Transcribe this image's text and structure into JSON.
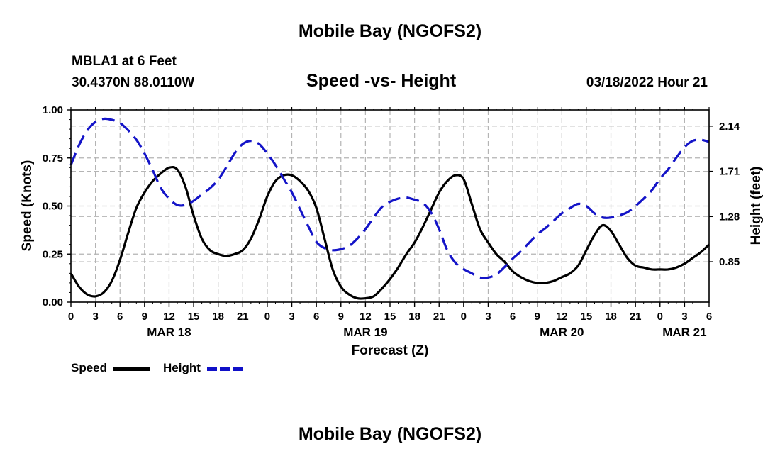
{
  "header": {
    "title": "Mobile Bay (NGOFS2)",
    "station": "MBLA1 at 6 Feet",
    "coords": "30.4370N  88.0110W",
    "subtitle": "Speed -vs- Height",
    "timestamp": "03/18/2022 Hour 21"
  },
  "footer": {
    "title": "Mobile Bay (NGOFS2)"
  },
  "legend": {
    "speed_label": "Speed",
    "height_label": "Height"
  },
  "colors": {
    "speed": "#000000",
    "height": "#1414c8",
    "grid": "#b4b4b4"
  },
  "chart_data": {
    "type": "line",
    "title": "Speed -vs- Height",
    "xlabel": "Forecast (Z)",
    "ylabel_left": "Speed (Knots)",
    "ylabel_right": "Height (feet)",
    "x_range_hours": [
      0,
      78
    ],
    "x_tick_labels": [
      "0",
      "3",
      "6",
      "9",
      "12",
      "15",
      "18",
      "21",
      "0",
      "3",
      "6",
      "9",
      "12",
      "15",
      "18",
      "21",
      "0",
      "3",
      "6",
      "9",
      "12",
      "15",
      "18",
      "21",
      "0",
      "3",
      "6"
    ],
    "date_labels": [
      {
        "label": "MAR 18",
        "hour": 12
      },
      {
        "label": "MAR 19",
        "hour": 36
      },
      {
        "label": "MAR 20",
        "hour": 60
      },
      {
        "label": "MAR 21",
        "hour": 75
      }
    ],
    "y_left": {
      "range": [
        0,
        1
      ],
      "ticks": [
        "0.00",
        "0.25",
        "0.50",
        "0.75",
        "1.00"
      ]
    },
    "y_right": {
      "range": [
        0.466,
        2.294
      ],
      "ticks": [
        "0.85",
        "1.28",
        "1.71",
        "2.14"
      ]
    },
    "series": [
      {
        "name": "Speed",
        "axis": "left",
        "style": "solid",
        "x": [
          0,
          1,
          2,
          3,
          4,
          5,
          6,
          7,
          8,
          9,
          10,
          11,
          12,
          13,
          14,
          15,
          16,
          17,
          18,
          19,
          20,
          21,
          22,
          23,
          24,
          25,
          26,
          27,
          28,
          29,
          30,
          31,
          32,
          33,
          34,
          35,
          36,
          37,
          38,
          39,
          40,
          41,
          42,
          43,
          44,
          45,
          46,
          47,
          48,
          49,
          50,
          51,
          52,
          53,
          54,
          55,
          56,
          57,
          58,
          59,
          60,
          61,
          62,
          63,
          64,
          65,
          66,
          67,
          68,
          69,
          70,
          71,
          72,
          73,
          74,
          75,
          76,
          77,
          78
        ],
        "values": [
          0.15,
          0.08,
          0.04,
          0.03,
          0.05,
          0.11,
          0.22,
          0.36,
          0.49,
          0.57,
          0.63,
          0.67,
          0.7,
          0.69,
          0.6,
          0.45,
          0.33,
          0.27,
          0.25,
          0.24,
          0.25,
          0.27,
          0.33,
          0.43,
          0.55,
          0.63,
          0.66,
          0.66,
          0.63,
          0.58,
          0.49,
          0.33,
          0.17,
          0.08,
          0.04,
          0.02,
          0.02,
          0.03,
          0.07,
          0.12,
          0.18,
          0.25,
          0.31,
          0.39,
          0.48,
          0.57,
          0.63,
          0.66,
          0.64,
          0.51,
          0.38,
          0.31,
          0.25,
          0.21,
          0.16,
          0.13,
          0.11,
          0.1,
          0.1,
          0.11,
          0.13,
          0.15,
          0.19,
          0.27,
          0.35,
          0.4,
          0.37,
          0.3,
          0.23,
          0.19,
          0.18,
          0.17,
          0.17,
          0.17,
          0.18,
          0.2,
          0.23,
          0.26,
          0.3
        ]
      },
      {
        "name": "Height",
        "axis": "right",
        "style": "dashed",
        "x": [
          0,
          1,
          2,
          3,
          4,
          5,
          6,
          7,
          8,
          9,
          10,
          11,
          12,
          13,
          14,
          15,
          16,
          17,
          18,
          19,
          20,
          21,
          22,
          23,
          24,
          25,
          26,
          27,
          28,
          29,
          30,
          31,
          32,
          33,
          34,
          35,
          36,
          37,
          38,
          39,
          40,
          41,
          42,
          43,
          44,
          45,
          46,
          47,
          48,
          49,
          50,
          51,
          52,
          53,
          54,
          55,
          56,
          57,
          58,
          59,
          60,
          61,
          62,
          63,
          64,
          65,
          66,
          67,
          68,
          69,
          70,
          71,
          72,
          73,
          74,
          75,
          76,
          77,
          78
        ],
        "values": [
          1.77,
          1.96,
          2.1,
          2.18,
          2.21,
          2.2,
          2.17,
          2.1,
          2.01,
          1.88,
          1.72,
          1.55,
          1.45,
          1.39,
          1.39,
          1.43,
          1.49,
          1.55,
          1.63,
          1.75,
          1.88,
          1.97,
          2.0,
          1.97,
          1.88,
          1.77,
          1.64,
          1.51,
          1.35,
          1.19,
          1.04,
          0.98,
          0.96,
          0.97,
          1.0,
          1.07,
          1.16,
          1.27,
          1.37,
          1.42,
          1.45,
          1.46,
          1.44,
          1.41,
          1.32,
          1.16,
          0.96,
          0.84,
          0.78,
          0.74,
          0.7,
          0.7,
          0.73,
          0.8,
          0.88,
          0.95,
          1.03,
          1.11,
          1.17,
          1.24,
          1.31,
          1.36,
          1.4,
          1.38,
          1.31,
          1.27,
          1.27,
          1.29,
          1.32,
          1.38,
          1.45,
          1.53,
          1.64,
          1.73,
          1.84,
          1.94,
          2.0,
          2.01,
          1.99
        ]
      }
    ]
  }
}
